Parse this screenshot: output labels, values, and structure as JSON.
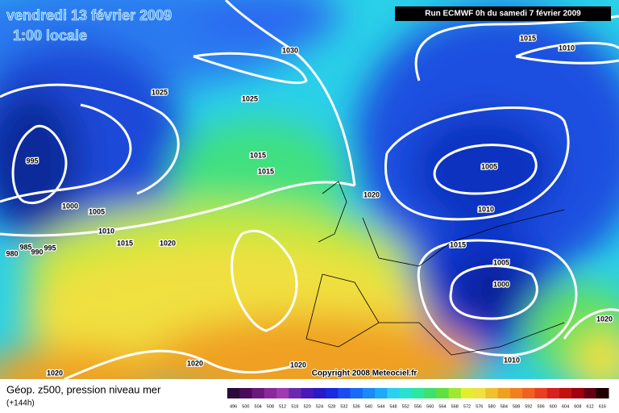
{
  "header": {
    "title": "vendredi 13 février 2009",
    "subtitle": "1:00 locale",
    "run": "Run ECMWF 0h du samedi 7 février 2009"
  },
  "isobar_labels": [
    "1030",
    "1015",
    "1010",
    "1025",
    "1025",
    "995",
    "1015",
    "1015",
    "1005",
    "1020",
    "1000",
    "1005",
    "1010",
    "1010",
    "1015",
    "1020",
    "1015",
    "985",
    "995",
    "990",
    "980",
    "1005",
    "1000",
    "1020",
    "1010",
    "1020",
    "1020",
    "1020"
  ],
  "copyright": "Copyright 2008 Meteociel.fr",
  "footer": {
    "title": "Géop. z500, pression niveau mer",
    "subtitle": "(+144h)"
  },
  "legend": {
    "labels": [
      496,
      500,
      504,
      508,
      512,
      516,
      520,
      524,
      528,
      532,
      536,
      540,
      544,
      548,
      552,
      556,
      560,
      564,
      568,
      572,
      576,
      580,
      584,
      588,
      592,
      596,
      600,
      604,
      608,
      612,
      616
    ],
    "colors": [
      "#2a0a3a",
      "#4a0a5a",
      "#6a1a7a",
      "#8a2a9a",
      "#a03ab0",
      "#6a2ab0",
      "#4a1ab8",
      "#2a1ac8",
      "#1a2ae0",
      "#1a4af0",
      "#1a6af8",
      "#1a8af8",
      "#1aaaf8",
      "#2ad0f0",
      "#2ae0d0",
      "#2ae8a0",
      "#40e070",
      "#60e040",
      "#a0e830",
      "#e0f030",
      "#f0e040",
      "#f0c030",
      "#f0a020",
      "#f08020",
      "#f06020",
      "#e84020",
      "#d82020",
      "#c01010",
      "#a00010",
      "#600010",
      "#200000"
    ]
  }
}
